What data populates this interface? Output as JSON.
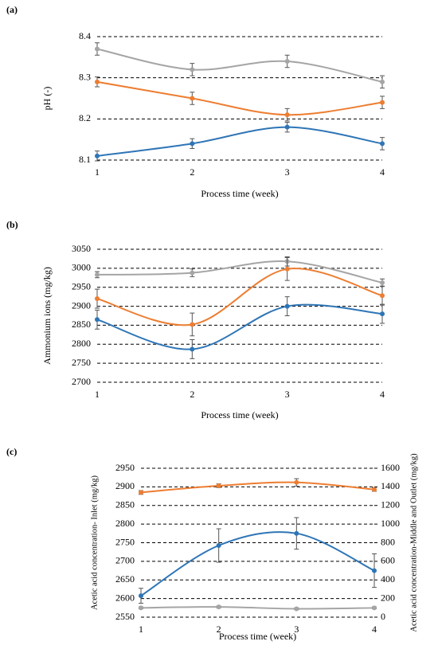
{
  "chart_data": [
    {
      "type": "line",
      "label": "(a)",
      "x_label": "Process time (week)",
      "y_label": "pH (-)",
      "x": [
        1,
        2,
        3,
        4
      ],
      "xlim": [
        1,
        4
      ],
      "xticks": [
        1,
        2,
        3,
        4
      ],
      "ylim": [
        8.1,
        8.4
      ],
      "yticks": [
        8.1,
        8.2,
        8.3,
        8.4
      ],
      "grid": true,
      "series": [
        {
          "color": "#a5a5a5",
          "values": [
            8.37,
            8.32,
            8.34,
            8.29
          ],
          "errors": [
            0.015,
            0.015,
            0.015,
            0.015
          ]
        },
        {
          "color": "#ed7d31",
          "values": [
            8.29,
            8.25,
            8.21,
            8.24
          ],
          "errors": [
            0.012,
            0.015,
            0.015,
            0.015
          ]
        },
        {
          "color": "#2e75b6",
          "values": [
            8.11,
            8.14,
            8.18,
            8.14
          ],
          "errors": [
            0.012,
            0.012,
            0.012,
            0.015
          ]
        }
      ]
    },
    {
      "type": "line",
      "label": "(b)",
      "x_label": "Process time (week)",
      "y_label": "Ammonium ions (mg/kg)",
      "x": [
        1,
        2,
        3,
        4
      ],
      "xlim": [
        1,
        4
      ],
      "xticks": [
        1,
        2,
        3,
        4
      ],
      "ylim": [
        2700,
        3050
      ],
      "yticks": [
        2700,
        2750,
        2800,
        2850,
        2900,
        2950,
        3000,
        3050
      ],
      "grid": true,
      "series": [
        {
          "color": "#a5a5a5",
          "values": [
            2983,
            2988,
            3018,
            2962
          ],
          "errors": [
            8,
            10,
            12,
            10
          ]
        },
        {
          "color": "#ed7d31",
          "values": [
            2920,
            2852,
            2998,
            2928
          ],
          "errors": [
            25,
            30,
            30,
            25
          ]
        },
        {
          "color": "#2e75b6",
          "values": [
            2865,
            2787,
            2900,
            2880
          ],
          "errors": [
            25,
            25,
            25,
            25
          ]
        }
      ]
    },
    {
      "type": "line",
      "label": "(c)",
      "x_label": "Process time (week)",
      "y_label": "Acetic acid concentration- Inlet (mg/kg)",
      "y2_label": "Acetic acid concentration-Middle and Outlet (mg/kg)",
      "x": [
        1,
        2,
        3,
        4
      ],
      "xlim": [
        1,
        4
      ],
      "xticks": [
        1,
        2,
        3,
        4
      ],
      "ylim": [
        2550,
        2950
      ],
      "yticks": [
        2550,
        2600,
        2650,
        2700,
        2750,
        2800,
        2850,
        2900,
        2950
      ],
      "y2lim": [
        0,
        1600
      ],
      "y2ticks": [
        0,
        200,
        400,
        600,
        800,
        1000,
        1200,
        1400,
        1600
      ],
      "grid": true,
      "series": [
        {
          "color": "#ed7d31",
          "values": [
            2885,
            2903,
            2912,
            2893
          ],
          "errors": [
            5,
            5,
            10,
            5
          ]
        },
        {
          "color": "#2e75b6",
          "axis": "y2",
          "values": [
            230,
            770,
            900,
            500
          ],
          "errors": [
            80,
            180,
            170,
            180
          ]
        },
        {
          "color": "#a5a5a5",
          "axis": "y2",
          "values": [
            100,
            110,
            90,
            100
          ],
          "errors": [
            10,
            10,
            10,
            10
          ]
        }
      ]
    }
  ]
}
